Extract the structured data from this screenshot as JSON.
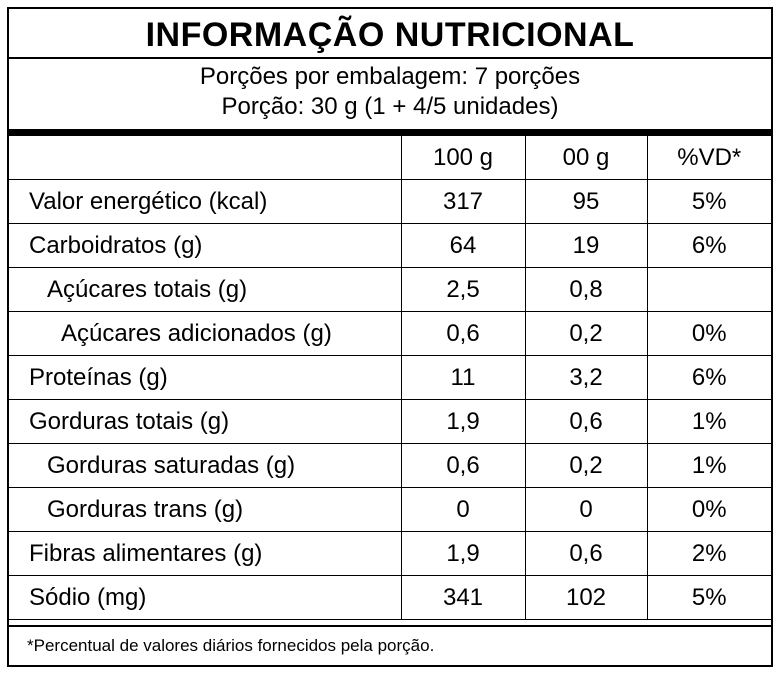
{
  "title": "INFORMAÇÃO NUTRICIONAL",
  "servings_per_package": "Porções por embalagem: 7 porções",
  "serving_size": "Porção: 30 g (1 + 4/5 unidades)",
  "columns": [
    "",
    "100 g",
    "00 g",
    "%VD*"
  ],
  "rows": [
    {
      "label": "Valor energético (kcal)",
      "per100": "317",
      "perServing": "95",
      "dv": "5%"
    },
    {
      "label": "Carboidratos (g)",
      "per100": "64",
      "perServing": "19",
      "dv": "6%"
    },
    {
      "label": "Açúcares totais (g)",
      "per100": "2,5",
      "perServing": "0,8",
      "dv": ""
    },
    {
      "label": "Açúcares adicionados (g)",
      "per100": "0,6",
      "perServing": "0,2",
      "dv": "0%"
    },
    {
      "label": "Proteínas (g)",
      "per100": "11",
      "perServing": "3,2",
      "dv": "6%"
    },
    {
      "label": "Gorduras totais (g)",
      "per100": "1,9",
      "perServing": "0,6",
      "dv": "1%"
    },
    {
      "label": "Gorduras saturadas (g)",
      "per100": "0,6",
      "perServing": "0,2",
      "dv": "1%"
    },
    {
      "label": "Gorduras trans (g)",
      "per100": "0",
      "perServing": "0",
      "dv": "0%"
    },
    {
      "label": "Fibras alimentares (g)",
      "per100": "1,9",
      "perServing": "0,6",
      "dv": "2%"
    },
    {
      "label": "Sódio (mg)",
      "per100": "341",
      "perServing": "102",
      "dv": "5%"
    }
  ],
  "footnote": "*Percentual de valores diários fornecidos pela porção."
}
